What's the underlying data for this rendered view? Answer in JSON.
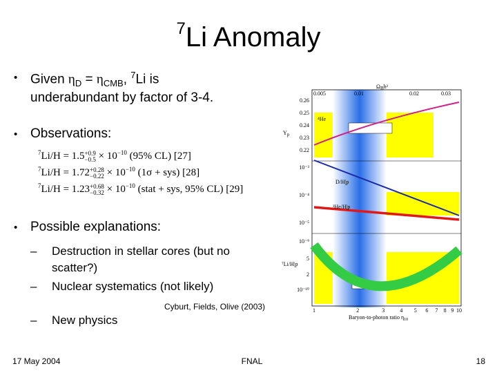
{
  "title": {
    "sup": "7",
    "main": "Li Anomaly"
  },
  "bullet1": {
    "a": "Given ",
    "eta1": "η",
    "sub1": "D",
    "eq": " = ",
    "eta2": "η",
    "sub2": "CMB",
    "comma": ", ",
    "sup": "7",
    "b": "Li is",
    "line2": "underabundant by factor of 3-4."
  },
  "observations": "Observations:",
  "equations": [
    {
      "lhs_sup": "7",
      "lhs": "Li/H = ",
      "value": "1.5",
      "up": "+0.9",
      "down": "−0.5",
      "times": " × 10",
      "exp": "−10",
      "note": " (95% CL) [27]"
    },
    {
      "lhs_sup": "7",
      "lhs": "Li/H = ",
      "value": "1.72",
      "up": "+0.28",
      "down": "−0.22",
      "times": " × 10",
      "exp": "−10",
      "note": " (1σ + sys) [28]"
    },
    {
      "lhs_sup": "7",
      "lhs": "Li/H = ",
      "value": "1.23",
      "up": "+0.68",
      "down": "−0.32",
      "times": " × 10",
      "exp": "−10",
      "note": " (stat + sys, 95% CL) [29]"
    }
  ],
  "explanations": "Possible explanations:",
  "subitems": [
    {
      "line1": "Destruction in stellar cores (but no",
      "line2": "scatter?)"
    },
    {
      "line1": "Nuclear systematics (not likely)"
    }
  ],
  "citation": "Cyburt, Fields, Olive (2003)",
  "new_physics": "New physics",
  "plot": {
    "top_label": "Ω",
    "top_label_sub": "B",
    "top_label_rest": "h²",
    "top_ticks": [
      "0.005",
      "0.01",
      "0.02",
      "0.03"
    ],
    "he_label": "⁴He",
    "yp_label": "Y",
    "yp_sub": "p",
    "he_ticks": [
      "0.26",
      "0.25",
      "0.24",
      "0.23",
      "0.22"
    ],
    "d_label": "D/H|p",
    "he3_label": "³He/H|p",
    "d_ticks": [
      "10⁻³",
      "10⁻⁴",
      "10⁻⁵"
    ],
    "li_label": "⁷Li/H|p",
    "li_ticks": [
      "10⁻⁹",
      "5",
      "2",
      "10⁻¹⁰"
    ],
    "x_ticks": [
      "1",
      "2",
      "3",
      "4",
      "5",
      "6",
      "7",
      "8",
      "9",
      "10"
    ],
    "x_label": "Baryon-to-photon ratio η",
    "x_label_sub": "10"
  },
  "footer": {
    "date": "17 May 2004",
    "center": "FNAL",
    "page": "18"
  }
}
